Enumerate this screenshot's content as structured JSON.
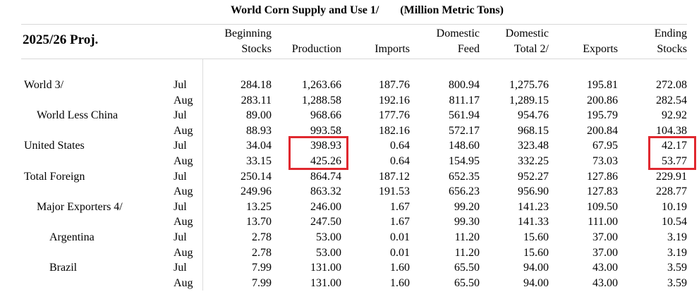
{
  "title": {
    "main": "World Corn Supply and Use  1/",
    "units": "(Million Metric Tons)"
  },
  "projection_label": "2025/26 Proj.",
  "columns": [
    {
      "line1": "Beginning",
      "line2": "Stocks"
    },
    {
      "line1": "",
      "line2": "Production"
    },
    {
      "line1": "",
      "line2": "Imports"
    },
    {
      "line1": "Domestic",
      "line2": "Feed"
    },
    {
      "line1": "Domestic",
      "line2": "Total 2/"
    },
    {
      "line1": "",
      "line2": "Exports"
    },
    {
      "line1": "Ending",
      "line2": "Stocks"
    }
  ],
  "rows": [
    {
      "label": "World  3/",
      "month": "Jul",
      "values": [
        "284.18",
        "1,263.66",
        "187.76",
        "800.94",
        "1,275.76",
        "195.81",
        "272.08"
      ]
    },
    {
      "label": "",
      "month": "Aug",
      "values": [
        "283.11",
        "1,288.58",
        "192.16",
        "811.17",
        "1,289.15",
        "200.86",
        "282.54"
      ]
    },
    {
      "label": "World Less China",
      "month": "Jul",
      "values": [
        "89.00",
        "968.66",
        "177.76",
        "561.94",
        "954.76",
        "195.79",
        "92.92"
      ]
    },
    {
      "label": "",
      "month": "Aug",
      "values": [
        "88.93",
        "993.58",
        "182.16",
        "572.17",
        "968.15",
        "200.84",
        "104.38"
      ]
    },
    {
      "label": "United States",
      "month": "Jul",
      "values": [
        "34.04",
        "398.93",
        "0.64",
        "148.60",
        "323.48",
        "67.95",
        "42.17"
      ]
    },
    {
      "label": "",
      "month": "Aug",
      "values": [
        "33.15",
        "425.26",
        "0.64",
        "154.95",
        "332.25",
        "73.03",
        "53.77"
      ]
    },
    {
      "label": "Total Foreign",
      "month": "Jul",
      "values": [
        "250.14",
        "864.74",
        "187.12",
        "652.35",
        "952.27",
        "127.86",
        "229.91"
      ]
    },
    {
      "label": "",
      "month": "Aug",
      "values": [
        "249.96",
        "863.32",
        "191.53",
        "656.23",
        "956.90",
        "127.83",
        "228.77"
      ]
    },
    {
      "label": "Major Exporters  4/",
      "month": "Jul",
      "values": [
        "13.25",
        "246.00",
        "1.67",
        "99.20",
        "141.23",
        "109.50",
        "10.19"
      ]
    },
    {
      "label": "",
      "month": "Aug",
      "values": [
        "13.70",
        "247.50",
        "1.67",
        "99.30",
        "141.33",
        "111.00",
        "10.54"
      ]
    },
    {
      "label": "Argentina",
      "month": "Jul",
      "values": [
        "2.78",
        "53.00",
        "0.01",
        "11.20",
        "15.60",
        "37.00",
        "3.19"
      ]
    },
    {
      "label": "",
      "month": "Aug",
      "values": [
        "2.78",
        "53.00",
        "0.01",
        "11.20",
        "15.60",
        "37.00",
        "3.19"
      ]
    },
    {
      "label": "Brazil",
      "month": "Jul",
      "values": [
        "7.99",
        "131.00",
        "1.60",
        "65.50",
        "94.00",
        "43.00",
        "3.59"
      ]
    },
    {
      "label": "",
      "month": "Aug",
      "values": [
        "7.99",
        "131.00",
        "1.60",
        "65.50",
        "94.00",
        "43.00",
        "3.59"
      ]
    }
  ],
  "colors": {
    "highlight": "#e0282f",
    "rule": "#d8d8d8"
  }
}
